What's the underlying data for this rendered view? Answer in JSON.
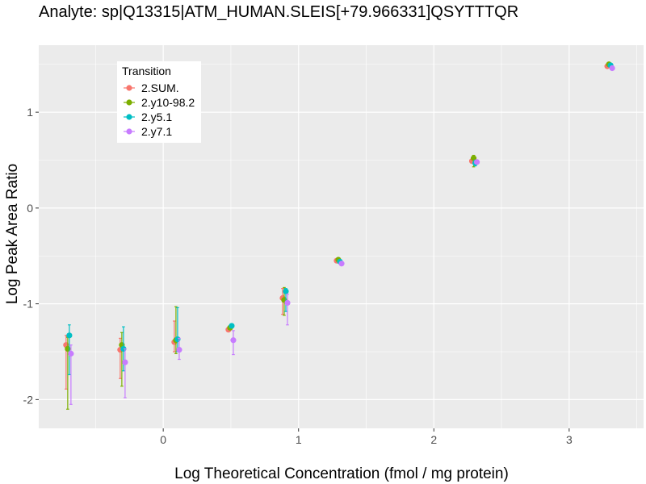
{
  "chart_data": {
    "type": "scatter",
    "title": "Analyte: sp|Q13315|ATM_HUMAN.SLEIS[+79.966331]QSYTTTQR",
    "xlabel": "Log Theoretical Concentration (fmol / mg protein)",
    "ylabel": "Log Peak Area Ratio",
    "xlim": [
      -0.92,
      3.55
    ],
    "ylim": [
      -2.3,
      1.7
    ],
    "x_ticks": [
      0,
      1,
      2,
      3
    ],
    "x_tick_labels": [
      "0",
      "1",
      "2",
      "3"
    ],
    "y_ticks": [
      -2,
      -1,
      0,
      1
    ],
    "y_tick_labels": [
      "-2",
      "-1",
      "0",
      "1"
    ],
    "grid": true,
    "legend": {
      "title": "Transition",
      "position": "top-left"
    },
    "colors": {
      "2.SUM.": "#F8766D",
      "2.y10-98.2": "#7CAE00",
      "2.y5.1": "#00BFC4",
      "2.y7.1": "#C77CFF"
    },
    "series": [
      {
        "name": "2.SUM.",
        "points": [
          {
            "x": -0.7,
            "y": -1.43,
            "ymin": -1.89,
            "ymax": -1.33
          },
          {
            "x": -0.3,
            "y": -1.48,
            "ymin": -1.78,
            "ymax": -1.36
          },
          {
            "x": 0.1,
            "y": -1.4,
            "ymin": -1.5,
            "ymax": -1.18
          },
          {
            "x": 0.5,
            "y": -1.27,
            "ymin": -1.27,
            "ymax": -1.27
          },
          {
            "x": 0.9,
            "y": -0.94,
            "ymin": -1.11,
            "ymax": -0.84
          },
          {
            "x": 1.3,
            "y": -0.55,
            "ymin": -0.55,
            "ymax": -0.55
          },
          {
            "x": 2.3,
            "y": 0.49,
            "ymin": 0.49,
            "ymax": 0.49
          },
          {
            "x": 3.3,
            "y": 1.48,
            "ymin": 1.48,
            "ymax": 1.48
          }
        ]
      },
      {
        "name": "2.y10-98.2",
        "points": [
          {
            "x": -0.7,
            "y": -1.47,
            "ymin": -2.1,
            "ymax": -1.35
          },
          {
            "x": -0.3,
            "y": -1.43,
            "ymin": -1.86,
            "ymax": -1.3
          },
          {
            "x": 0.1,
            "y": -1.38,
            "ymin": -1.52,
            "ymax": -1.03
          },
          {
            "x": 0.5,
            "y": -1.25,
            "ymin": -1.25,
            "ymax": -1.25
          },
          {
            "x": 0.9,
            "y": -0.96,
            "ymin": -1.12,
            "ymax": -0.83
          },
          {
            "x": 1.3,
            "y": -0.54,
            "ymin": -0.54,
            "ymax": -0.54
          },
          {
            "x": 2.3,
            "y": 0.52,
            "ymin": 0.43,
            "ymax": 0.55
          },
          {
            "x": 3.3,
            "y": 1.5,
            "ymin": 1.5,
            "ymax": 1.5
          }
        ]
      },
      {
        "name": "2.y5.1",
        "points": [
          {
            "x": -0.7,
            "y": -1.33,
            "ymin": -1.74,
            "ymax": -1.22
          },
          {
            "x": -0.3,
            "y": -1.47,
            "ymin": -1.7,
            "ymax": -1.24
          },
          {
            "x": 0.1,
            "y": -1.37,
            "ymin": -1.5,
            "ymax": -1.04
          },
          {
            "x": 0.5,
            "y": -1.23,
            "ymin": -1.23,
            "ymax": -1.23
          },
          {
            "x": 0.9,
            "y": -0.87,
            "ymin": -1.08,
            "ymax": -0.84
          },
          {
            "x": 1.3,
            "y": -0.56,
            "ymin": -0.56,
            "ymax": -0.56
          },
          {
            "x": 2.3,
            "y": 0.47,
            "ymin": 0.44,
            "ymax": 0.5
          },
          {
            "x": 3.3,
            "y": 1.49,
            "ymin": 1.49,
            "ymax": 1.49
          }
        ]
      },
      {
        "name": "2.y7.1",
        "points": [
          {
            "x": -0.7,
            "y": -1.52,
            "ymin": -2.05,
            "ymax": -1.43
          },
          {
            "x": -0.3,
            "y": -1.61,
            "ymin": -1.98,
            "ymax": -1.47
          },
          {
            "x": 0.1,
            "y": -1.48,
            "ymin": -1.58,
            "ymax": -1.36
          },
          {
            "x": 0.5,
            "y": -1.38,
            "ymin": -1.53,
            "ymax": -1.28
          },
          {
            "x": 0.9,
            "y": -0.99,
            "ymin": -1.22,
            "ymax": -0.9
          },
          {
            "x": 1.3,
            "y": -0.58,
            "ymin": -0.58,
            "ymax": -0.58
          },
          {
            "x": 2.3,
            "y": 0.48,
            "ymin": 0.48,
            "ymax": 0.48
          },
          {
            "x": 3.3,
            "y": 1.46,
            "ymin": 1.46,
            "ymax": 1.46
          }
        ]
      }
    ]
  }
}
